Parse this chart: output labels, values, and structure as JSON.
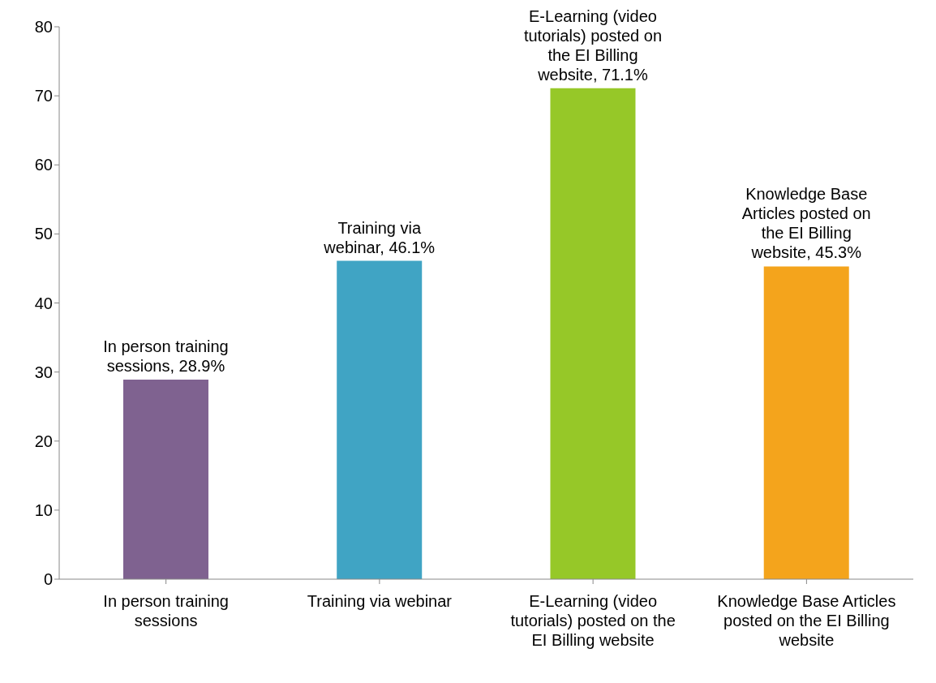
{
  "chart_data": {
    "type": "bar",
    "categories": [
      "In person training sessions",
      "Training via webinar",
      "E-Learning (video tutorials) posted on the EI Billing website",
      "Knowledge Base Articles posted on the EI Billing website"
    ],
    "values": [
      28.9,
      46.1,
      71.1,
      45.3
    ],
    "colors": [
      "#7f6290",
      "#40a4c4",
      "#96c828",
      "#f4a41c"
    ],
    "value_labels": [
      "In person training sessions, 28.9%",
      "Training via webinar, 46.1%",
      "E-Learning (video tutorials) posted on the EI Billing website, 71.1%",
      "Knowledge Base Articles posted on the EI Billing website, 45.3%"
    ],
    "ylim": [
      0,
      80
    ],
    "yticks": [
      0,
      10,
      20,
      30,
      40,
      50,
      60,
      70,
      80
    ],
    "grid": false,
    "legend": false
  }
}
